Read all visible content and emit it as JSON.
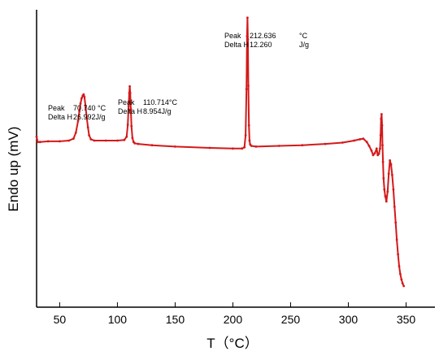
{
  "chart_data": {
    "type": "line",
    "title": "",
    "xlabel": "T（°C）",
    "ylabel": "Endo up (mV)",
    "xlim": [
      30,
      375
    ],
    "ylim": [
      -2.5,
      2.0
    ],
    "x_ticks": [
      50,
      100,
      150,
      200,
      250,
      300,
      350
    ],
    "y_ticks_shown": false,
    "grid": false,
    "legend": "none",
    "line_color": "#d41919",
    "series": [
      {
        "x": [
          30,
          31,
          33,
          40,
          50,
          58,
          62,
          64,
          66,
          67,
          68,
          69,
          70,
          70.74,
          71.5,
          72.5,
          73.5,
          74.5,
          75.5,
          77,
          80,
          90,
          100,
          106,
          108,
          109,
          109.7,
          110.3,
          110.7,
          111.1,
          111.6,
          112.2,
          113,
          114,
          115,
          118,
          130,
          150,
          180,
          200,
          208,
          210,
          211,
          211.8,
          212.3,
          212.64,
          213,
          213.4,
          213.9,
          214.4,
          215,
          216,
          220,
          240,
          260,
          280,
          295,
          305,
          310,
          313,
          316,
          318,
          320,
          321.5,
          323,
          324.5,
          325.5,
          326.5,
          327.5,
          328,
          328.4,
          328.8,
          329.2,
          329.6,
          330,
          330.5,
          331.2,
          332,
          333,
          334,
          335,
          336,
          337,
          338,
          339,
          340,
          341,
          342,
          343,
          344,
          345,
          346,
          347,
          348
        ],
        "y": [
          0.08,
          0.0,
          0.0,
          0.01,
          0.01,
          0.02,
          0.05,
          0.14,
          0.32,
          0.46,
          0.58,
          0.66,
          0.7,
          0.72,
          0.68,
          0.52,
          0.36,
          0.22,
          0.1,
          0.04,
          0.02,
          0.02,
          0.02,
          0.03,
          0.08,
          0.26,
          0.54,
          0.74,
          0.84,
          0.74,
          0.5,
          0.24,
          0.06,
          0.0,
          -0.02,
          -0.03,
          -0.05,
          -0.07,
          -0.09,
          -0.1,
          -0.1,
          -0.08,
          0.1,
          0.8,
          1.6,
          1.88,
          1.55,
          0.85,
          0.25,
          0.02,
          -0.04,
          -0.06,
          -0.07,
          -0.06,
          -0.05,
          -0.03,
          -0.01,
          0.02,
          0.04,
          0.05,
          0.0,
          -0.06,
          -0.13,
          -0.2,
          -0.17,
          -0.1,
          -0.2,
          -0.18,
          -0.1,
          0.1,
          0.35,
          0.42,
          0.25,
          -0.05,
          -0.3,
          -0.55,
          -0.72,
          -0.82,
          -0.9,
          -0.75,
          -0.48,
          -0.28,
          -0.34,
          -0.5,
          -0.72,
          -0.98,
          -1.22,
          -1.48,
          -1.7,
          -1.88,
          -2.0,
          -2.08,
          -2.14,
          -2.18
        ]
      }
    ],
    "annotations": [
      {
        "lines": [
          [
            "Peak",
            "70.740 °C"
          ],
          [
            "Delta H",
            "26.992J/g"
          ]
        ]
      },
      {
        "lines": [
          [
            "Peak",
            "110.714°C"
          ],
          [
            "Delta H",
            "8.954J/g"
          ]
        ]
      },
      {
        "lines": [
          [
            "Peak",
            "212.636",
            "°C"
          ],
          [
            "Delta H",
            "12.260",
            "J/g"
          ]
        ]
      }
    ]
  }
}
